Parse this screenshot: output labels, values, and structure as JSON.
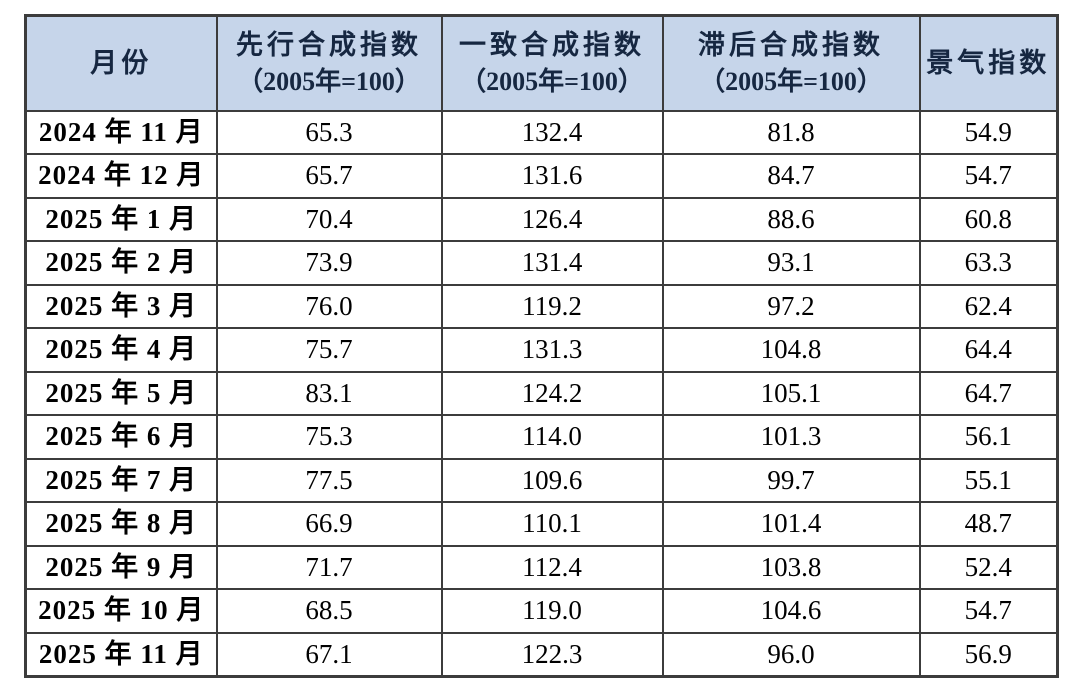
{
  "colors": {
    "header_bg": "#c6d5ea",
    "header_text": "#162741",
    "border": "#3c3c3c",
    "body_text": "#000000",
    "page_bg": "#ffffff"
  },
  "table": {
    "header": {
      "month": "月份",
      "leading_line1": "先行合成指数",
      "leading_line2": "（2005年=100）",
      "coincident_line1": "一致合成指数",
      "coincident_line2": "（2005年=100）",
      "lagging_line1": "滞后合成指数",
      "lagging_line2": "（2005年=100）",
      "prosperity": "景气指数"
    },
    "row_keys": [
      "month",
      "leading",
      "coincident",
      "lagging",
      "prosperity"
    ],
    "rows": [
      {
        "month": "2024 年 11 月",
        "leading": "65.3",
        "coincident": "132.4",
        "lagging": "81.8",
        "prosperity": "54.9"
      },
      {
        "month": "2024 年 12 月",
        "leading": "65.7",
        "coincident": "131.6",
        "lagging": "84.7",
        "prosperity": "54.7"
      },
      {
        "month": "2025 年 1 月",
        "leading": "70.4",
        "coincident": "126.4",
        "lagging": "88.6",
        "prosperity": "60.8"
      },
      {
        "month": "2025 年 2 月",
        "leading": "73.9",
        "coincident": "131.4",
        "lagging": "93.1",
        "prosperity": "63.3"
      },
      {
        "month": "2025 年 3 月",
        "leading": "76.0",
        "coincident": "119.2",
        "lagging": "97.2",
        "prosperity": "62.4"
      },
      {
        "month": "2025 年 4 月",
        "leading": "75.7",
        "coincident": "131.3",
        "lagging": "104.8",
        "prosperity": "64.4"
      },
      {
        "month": "2025 年 5 月",
        "leading": "83.1",
        "coincident": "124.2",
        "lagging": "105.1",
        "prosperity": "64.7"
      },
      {
        "month": "2025 年 6 月",
        "leading": "75.3",
        "coincident": "114.0",
        "lagging": "101.3",
        "prosperity": "56.1"
      },
      {
        "month": "2025 年 7 月",
        "leading": "77.5",
        "coincident": "109.6",
        "lagging": "99.7",
        "prosperity": "55.1"
      },
      {
        "month": "2025 年 8 月",
        "leading": "66.9",
        "coincident": "110.1",
        "lagging": "101.4",
        "prosperity": "48.7"
      },
      {
        "month": "2025 年 9 月",
        "leading": "71.7",
        "coincident": "112.4",
        "lagging": "103.8",
        "prosperity": "52.4"
      },
      {
        "month": "2025 年 10 月",
        "leading": "68.5",
        "coincident": "119.0",
        "lagging": "104.6",
        "prosperity": "54.7"
      },
      {
        "month": "2025 年 11 月",
        "leading": "67.1",
        "coincident": "122.3",
        "lagging": "96.0",
        "prosperity": "56.9"
      }
    ]
  },
  "chart_data": {
    "type": "table",
    "columns": [
      "月份",
      "先行合成指数（2005年=100）",
      "一致合成指数（2005年=100）",
      "滞后合成指数（2005年=100）",
      "景气指数"
    ],
    "rows": [
      [
        "2024年11月",
        65.3,
        132.4,
        81.8,
        54.9
      ],
      [
        "2024年12月",
        65.7,
        131.6,
        84.7,
        54.7
      ],
      [
        "2025年1月",
        70.4,
        126.4,
        88.6,
        60.8
      ],
      [
        "2025年2月",
        73.9,
        131.4,
        93.1,
        63.3
      ],
      [
        "2025年3月",
        76.0,
        119.2,
        97.2,
        62.4
      ],
      [
        "2025年4月",
        75.7,
        131.3,
        104.8,
        64.4
      ],
      [
        "2025年5月",
        83.1,
        124.2,
        105.1,
        64.7
      ],
      [
        "2025年6月",
        75.3,
        114.0,
        101.3,
        56.1
      ],
      [
        "2025年7月",
        77.5,
        109.6,
        99.7,
        55.1
      ],
      [
        "2025年8月",
        66.9,
        110.1,
        101.4,
        48.7
      ],
      [
        "2025年9月",
        71.7,
        112.4,
        103.8,
        52.4
      ],
      [
        "2025年10月",
        68.5,
        119.0,
        104.6,
        54.7
      ],
      [
        "2025年11月",
        67.1,
        122.3,
        96.0,
        56.9
      ]
    ]
  }
}
